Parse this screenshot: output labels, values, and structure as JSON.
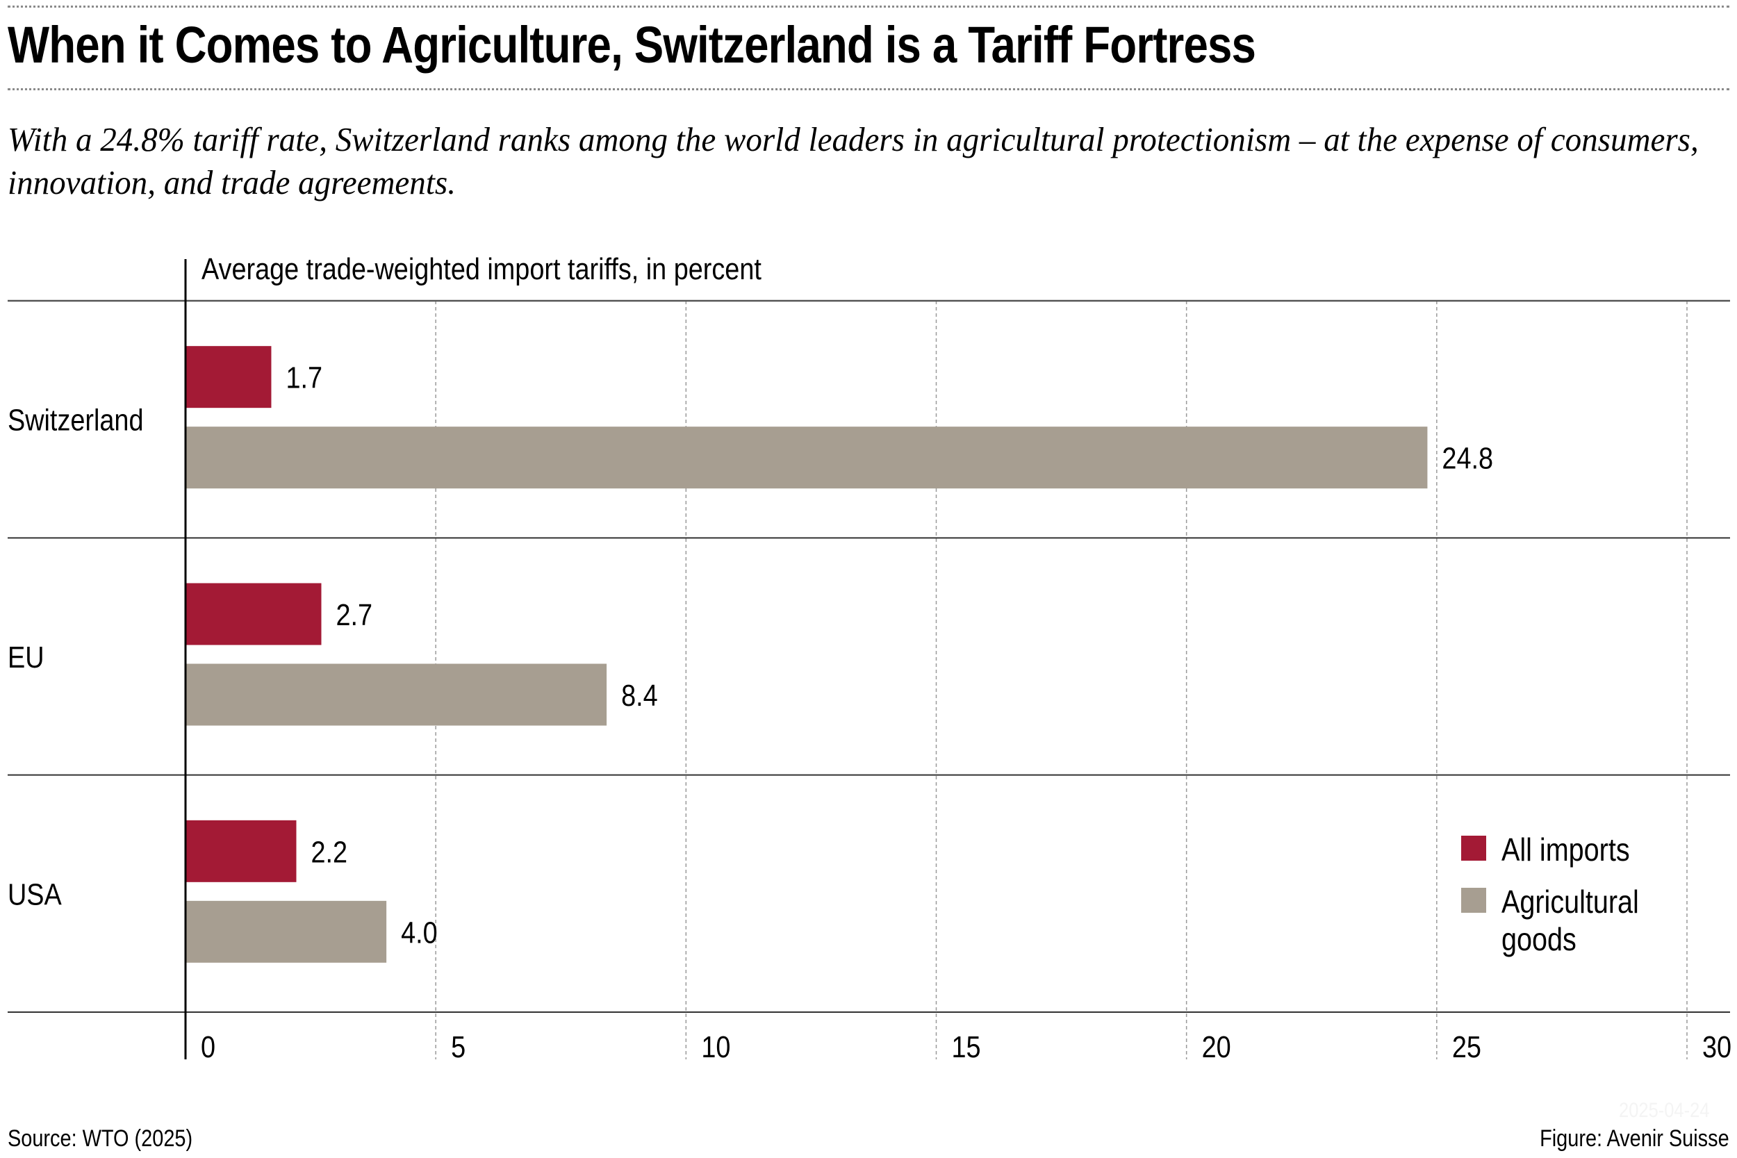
{
  "header": {
    "title": "When it Comes to Agriculture, Switzerland is a Tariff Fortress",
    "subtitle": "With a 24.8% tariff rate, Switzerland ranks among the world leaders in agricultural protectionism – at the expense of consumers, innovation, and trade agreements."
  },
  "footer": {
    "source": "Source: WTO (2025)",
    "credit": "Figure: Avenir Suisse",
    "watermark": "2025-04-24"
  },
  "colors": {
    "all_imports": "#a31a35",
    "agricultural_goods": "#a79e91",
    "gridline": "#9a9a9a",
    "axis": "#000000"
  },
  "chart_data": {
    "type": "bar",
    "orientation": "horizontal",
    "title": "When it Comes to Agriculture, Switzerland is a Tariff Fortress",
    "subtitle": "With a 24.8% tariff rate, Switzerland ranks among the world leaders in agricultural protectionism – at the expense of consumers, innovation, and trade agreements.",
    "axis_title": "Average trade-weighted import tariffs, in percent",
    "xlabel": "",
    "ylabel": "",
    "categories": [
      "Switzerland",
      "EU",
      "USA"
    ],
    "series": [
      {
        "name": "All imports",
        "color": "#a31a35",
        "values": [
          1.7,
          2.7,
          2.2
        ],
        "labels": [
          "1.7",
          "2.7",
          "2.2"
        ]
      },
      {
        "name": "Agricultural goods",
        "color": "#a79e91",
        "values": [
          24.8,
          8.4,
          4.0
        ],
        "labels": [
          "24.8",
          "8.4",
          "4.0"
        ]
      }
    ],
    "xlim": [
      0,
      30
    ],
    "xticks": [
      0,
      5,
      10,
      15,
      20,
      25,
      30
    ],
    "xtick_labels": [
      "0",
      "5",
      "10",
      "15",
      "20",
      "25",
      "30"
    ],
    "grid": "vertical dashed",
    "legend": {
      "position": "bottom-right",
      "entries": [
        "All imports",
        "Agricultural\ngoods"
      ]
    },
    "source": "Source: WTO (2025)",
    "credit": "Figure: Avenir Suisse"
  }
}
